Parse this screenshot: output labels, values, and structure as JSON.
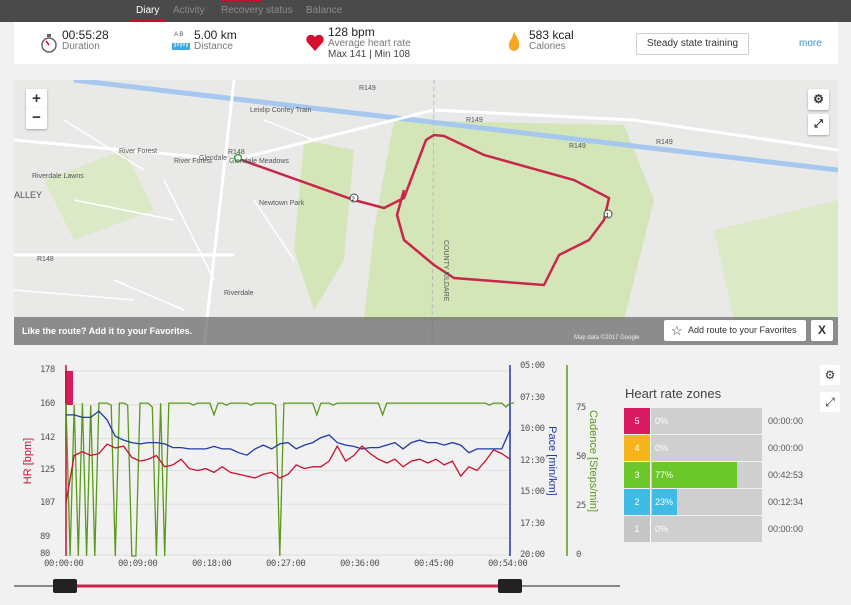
{
  "nav": {
    "tabs": [
      "Diary",
      "Activity",
      "Recovery status",
      "Balance"
    ],
    "active": 0
  },
  "summary": {
    "duration": {
      "value": "00:55:28",
      "label": "Duration"
    },
    "distance": {
      "value": "5.00 km",
      "label": "Distance",
      "ab": "A  B"
    },
    "heart_rate": {
      "value": "128 bpm",
      "label": "Average heart rate",
      "maxmin": "Max 141  |  Min 108"
    },
    "calories": {
      "value": "583 kcal",
      "label": "Calories"
    },
    "training_type": "Steady state training",
    "more": "more"
  },
  "map": {
    "zoom_in": "+",
    "zoom_out": "−",
    "labels": [
      "Leixlip Confey Train",
      "Glendale",
      "Glendale Meadows",
      "River Forest",
      "Riverdale Lawns",
      "Newtown Park",
      "Riverdale",
      "ALLEY",
      "R148",
      "R149",
      "COUNTY KILDARE"
    ],
    "markers": [
      "1",
      "2"
    ],
    "fav_prompt": "Like the route?  Add it to your Favorites.",
    "attribution": "Map data ©2017 Google",
    "fav_button": "Add route to your Favorites",
    "close": "X",
    "colors": {
      "route": "#c8264a",
      "park": "#cfe3b0",
      "river": "#a7c8ee"
    }
  },
  "chart_data": {
    "type": "line",
    "xlabel": "time",
    "x_ticks": [
      "00:00:00",
      "00:09:00",
      "00:18:00",
      "00:27:00",
      "00:36:00",
      "00:45:00",
      "00:54:00"
    ],
    "xlim_minutes": [
      0,
      54
    ],
    "hr_axis": {
      "label": "HR [bpm]",
      "ticks": [
        178,
        160,
        142,
        125,
        107,
        89,
        80
      ],
      "ylim": [
        80,
        178
      ],
      "color": "#c8102e"
    },
    "pace_axis": {
      "label": "Pace [min/km]",
      "ticks": [
        "05:00",
        "07:30",
        "10:00",
        "12:30",
        "15:00",
        "17:30",
        "20:00"
      ],
      "ylim": [
        5,
        20
      ],
      "color": "#1f3aa6"
    },
    "cadence_axis": {
      "label": "Cadence [Steps/min]",
      "ticks": [
        75,
        50,
        25,
        0
      ],
      "ylim": [
        0,
        100
      ],
      "color": "#5a9a1a"
    },
    "series": [
      {
        "name": "HR",
        "x_step_min": 1,
        "values": [
          108,
          133,
          135,
          133,
          134,
          139,
          137,
          138,
          132,
          130,
          131,
          133,
          127,
          128,
          131,
          126,
          125,
          126,
          124,
          127,
          124,
          123,
          122,
          121,
          123,
          124,
          121,
          123,
          128,
          126,
          127,
          127,
          130,
          138,
          130,
          133,
          138,
          134,
          131,
          129,
          131,
          127,
          130,
          131,
          129,
          131,
          128,
          130,
          122,
          127,
          125,
          130,
          136,
          134,
          131
        ]
      },
      {
        "name": "Pace",
        "x_step_min": 1,
        "values": [
          8.8,
          8.8,
          9.0,
          9.0,
          8.5,
          9.2,
          10.5,
          10.8,
          11.0,
          11.1,
          11.0,
          11.0,
          11.1,
          11.4,
          11.4,
          11.5,
          11.5,
          11.5,
          11.3,
          11.5,
          11.5,
          11.8,
          12.0,
          11.5,
          11.2,
          11.5,
          11.1,
          11.0,
          11.5,
          11.2,
          11.0,
          10.6,
          10.4,
          11.0,
          11.2,
          11.3,
          11.5,
          11.4,
          11.4,
          11.2,
          11.0,
          11.5,
          11.0,
          10.8,
          11.0,
          11.0,
          11.2,
          11.0,
          11.2,
          11.8,
          11.5,
          11.5,
          11.5,
          11.5,
          10.0
        ]
      },
      {
        "name": "Cadence",
        "x_step_min": 0.5,
        "values": [
          78,
          0,
          77,
          0,
          78,
          0,
          77,
          0,
          78,
          78,
          78,
          77,
          0,
          78,
          78,
          77,
          0,
          0,
          78,
          78,
          78,
          76,
          0,
          78,
          0,
          78,
          78,
          78,
          78,
          78,
          78,
          77,
          78,
          78,
          78,
          78,
          72,
          78,
          78,
          77,
          78,
          78,
          78,
          78,
          78,
          77,
          78,
          78,
          78,
          78,
          78,
          77,
          0,
          78,
          78,
          78,
          78,
          78,
          78,
          78,
          78,
          72,
          78,
          78,
          78,
          77,
          78,
          78,
          78,
          78,
          78,
          78,
          78,
          78,
          78,
          78,
          78,
          72,
          78,
          78,
          78,
          78,
          78,
          78,
          78,
          78,
          78,
          78,
          78,
          78,
          78,
          78,
          78,
          78,
          78,
          78,
          78,
          78,
          78,
          78,
          78,
          78,
          78,
          77,
          78,
          78,
          78,
          76,
          78,
          78
        ]
      }
    ]
  },
  "zones": {
    "title": "Heart rate zones",
    "rows": [
      {
        "zone": "5",
        "pct": "0%",
        "value": 0,
        "time": "00:00:00",
        "color": "#d81b60"
      },
      {
        "zone": "4",
        "pct": "0%",
        "value": 0,
        "time": "00:00:00",
        "color": "#f5b51a"
      },
      {
        "zone": "3",
        "pct": "77%",
        "value": 77,
        "time": "00:42:53",
        "color": "#6cc72b"
      },
      {
        "zone": "2",
        "pct": "23%",
        "value": 23,
        "time": "00:12:34",
        "color": "#3fbce6"
      },
      {
        "zone": "1",
        "pct": "0%",
        "value": 0,
        "time": "00:00:00",
        "color": "#c6c6c6"
      }
    ]
  }
}
